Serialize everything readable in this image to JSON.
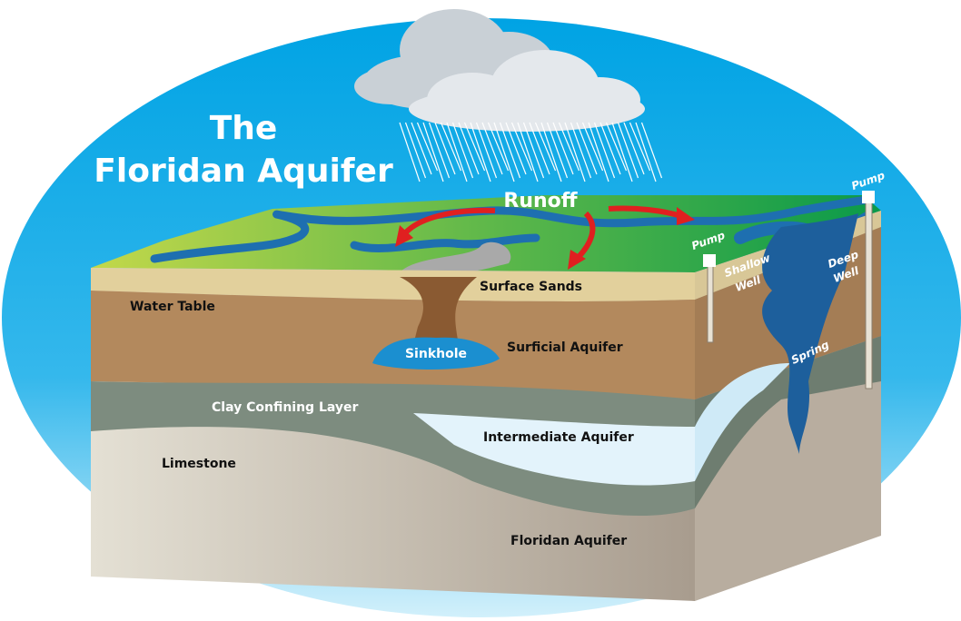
{
  "header": {
    "title": [
      "The",
      "Floridan Aquifer"
    ]
  },
  "labels": {
    "runoff": "Runoff",
    "surface_sands": "Surface Sands",
    "water_table": "Water Table",
    "sinkhole": "Sinkhole",
    "surficial_aquifer": "Surficial Aquifer",
    "clay_confining_layer": "Clay Confining Layer",
    "intermediate_aquifer": "Intermediate Aquifer",
    "limestone": "Limestone",
    "floridan_aquifer": "Floridan Aquifer",
    "pump_shallow": "Pump",
    "pump_deep": "Pump",
    "shallow_well": [
      "Shallow",
      "Well"
    ],
    "deep_well": [
      "Deep",
      "Well"
    ],
    "spring": "Spring"
  }
}
